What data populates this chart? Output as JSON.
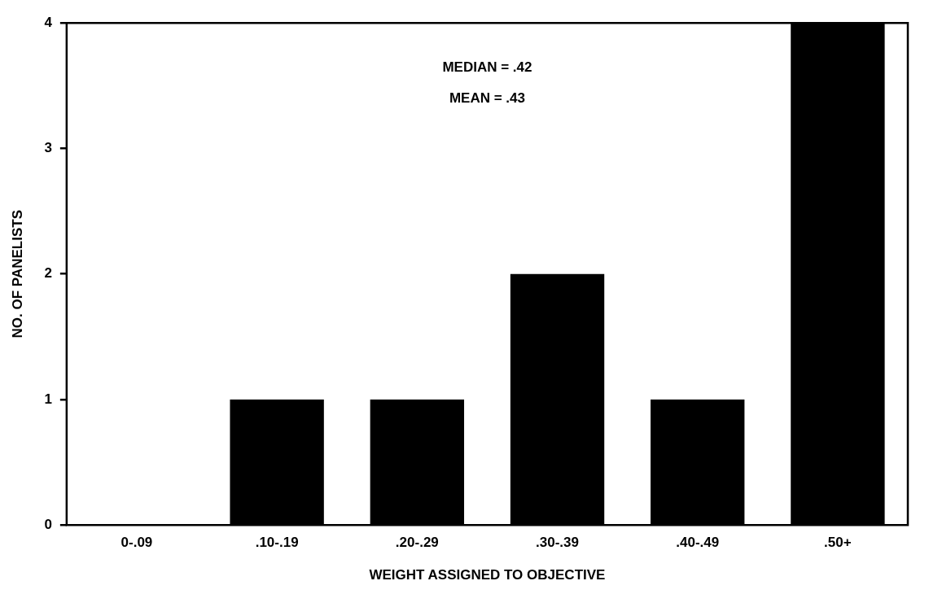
{
  "chart_data": {
    "type": "bar",
    "xlabel": "WEIGHT ASSIGNED TO OBJECTIVE",
    "ylabel": "NO. OF PANELISTS",
    "categories": [
      "0-.09",
      ".10-.19",
      ".20-.29",
      ".30-.39",
      ".40-.49",
      ".50+"
    ],
    "values": [
      0,
      1,
      1,
      2,
      1,
      4
    ],
    "color": "#000000",
    "ylim": [
      0,
      4
    ],
    "yticks": [
      0,
      1,
      2,
      3,
      4
    ],
    "grid": false,
    "legend": false,
    "annotations": [
      "MEDIAN = .42",
      "MEAN = .43"
    ]
  }
}
